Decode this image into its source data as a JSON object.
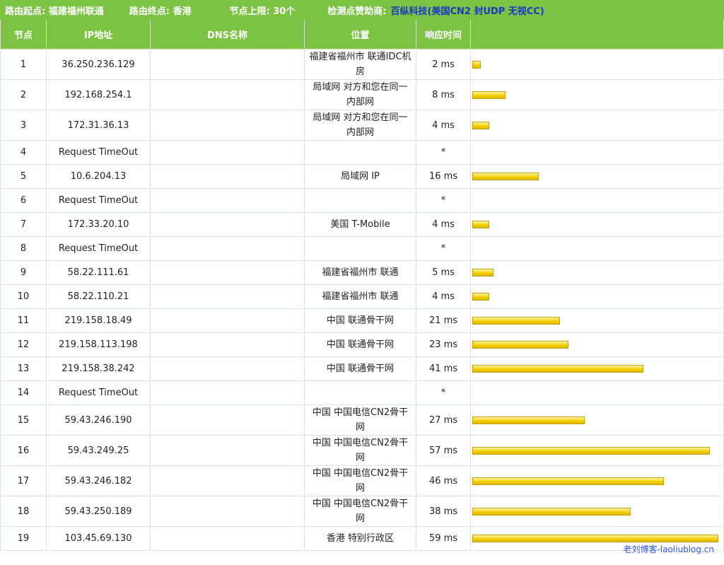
{
  "header": {
    "origin": "路由起点: 福建福州联通",
    "destination": "路由终点: 香港",
    "limit": "节点上限: 30个",
    "sponsor_label": "检测点赞助商:",
    "sponsor": "百纵科技",
    "sponsor_note": "(美国CN2 封UDP 无视CC)"
  },
  "table": {
    "columns": [
      "节点",
      "IP地址",
      "DNS名称",
      "位置",
      "响应时间"
    ],
    "rows": [
      {
        "node": "1",
        "ip": "36.250.236.129",
        "location": "福建省福州市 联通IDC机房",
        "time": "2 ms"
      },
      {
        "node": "2",
        "ip": "192.168.254.1",
        "location": "局域网 对方和您在同一内部网",
        "time": "8 ms"
      },
      {
        "node": "3",
        "ip": "172.31.36.13",
        "location": "局域网 对方和您在同一内部网",
        "time": "4 ms"
      },
      {
        "node": "4",
        "ip": "Request TimeOut",
        "time": "*"
      },
      {
        "node": "5",
        "ip": "10.6.204.13",
        "location": "局域网 IP",
        "time": "16 ms"
      },
      {
        "node": "6",
        "ip": "Request TimeOut",
        "time": "*"
      },
      {
        "node": "7",
        "ip": "172.33.20.10",
        "location": "美国 T-Mobile",
        "time": "4 ms"
      },
      {
        "node": "8",
        "ip": "Request TimeOut",
        "time": "*"
      },
      {
        "node": "9",
        "ip": "58.22.111.61",
        "location": "福建省福州市 联通",
        "time": "5 ms"
      },
      {
        "node": "10",
        "ip": "58.22.110.21",
        "location": "福建省福州市 联通",
        "time": "4 ms"
      },
      {
        "node": "11",
        "ip": "219.158.18.49",
        "location": "中国 联通骨干网",
        "time": "21 ms"
      },
      {
        "node": "12",
        "ip": "219.158.113.198",
        "location": "中国 联通骨干网",
        "time": "23 ms"
      },
      {
        "node": "13",
        "ip": "219.158.38.242",
        "location": "中国 联通骨干网",
        "time": "41 ms"
      },
      {
        "node": "14",
        "ip": "Request TimeOut",
        "time": "*"
      },
      {
        "node": "15",
        "ip": "59.43.246.190",
        "location": "中国 中国电信CN2骨干网",
        "time": "27 ms"
      },
      {
        "node": "16",
        "ip": "59.43.249.25",
        "location": "中国 中国电信CN2骨干网",
        "time": "57 ms"
      },
      {
        "node": "17",
        "ip": "59.43.246.182",
        "location": "中国 中国电信CN2骨干网",
        "time": "46 ms"
      },
      {
        "node": "18",
        "ip": "59.43.250.189",
        "location": "中国 中国电信CN2骨干网",
        "time": "38 ms"
      },
      {
        "node": "19",
        "ip": "103.45.69.130",
        "location": "香港 特别行政区",
        "time": "59 ms"
      }
    ]
  },
  "watermark": "老刘博客-laoliublog.cn"
}
